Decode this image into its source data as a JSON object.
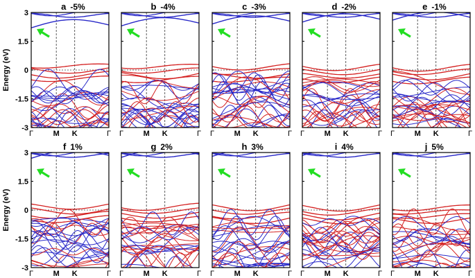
{
  "chart_data": {
    "type": "line",
    "ylabel": "Energy (eV)",
    "yticks": [
      "3",
      "1.5",
      "0",
      "-1.5",
      "-3"
    ],
    "ylim": [
      -3,
      3
    ],
    "x_ticks": [
      "Γ",
      "M",
      "K",
      "Γ"
    ],
    "fermi_level": 0,
    "colors": {
      "spin_up": "#d42020",
      "spin_down": "#2828c8",
      "arrow": "#22dd22",
      "frame": "#000000"
    },
    "panels": [
      {
        "letter": "a",
        "strain": "-5%",
        "cb_bottom_eV": 2.2,
        "arrow": true
      },
      {
        "letter": "b",
        "strain": "-4%",
        "cb_bottom_eV": 2.3,
        "arrow": true
      },
      {
        "letter": "c",
        "strain": "-3%",
        "cb_bottom_eV": 2.4,
        "arrow": true
      },
      {
        "letter": "d",
        "strain": "-2%",
        "cb_bottom_eV": 2.5,
        "arrow": true
      },
      {
        "letter": "e",
        "strain": "-1%",
        "cb_bottom_eV": 2.6,
        "arrow": true
      },
      {
        "letter": "f",
        "strain": "1%",
        "cb_bottom_eV": 2.7,
        "arrow": true
      },
      {
        "letter": "g",
        "strain": "2%",
        "cb_bottom_eV": 2.75,
        "arrow": true
      },
      {
        "letter": "h",
        "strain": "3%",
        "cb_bottom_eV": 2.8,
        "arrow": true
      },
      {
        "letter": "i",
        "strain": "4%",
        "cb_bottom_eV": 2.85,
        "arrow": true
      },
      {
        "letter": "j",
        "strain": "5%",
        "cb_bottom_eV": 2.9,
        "arrow": true
      }
    ]
  }
}
